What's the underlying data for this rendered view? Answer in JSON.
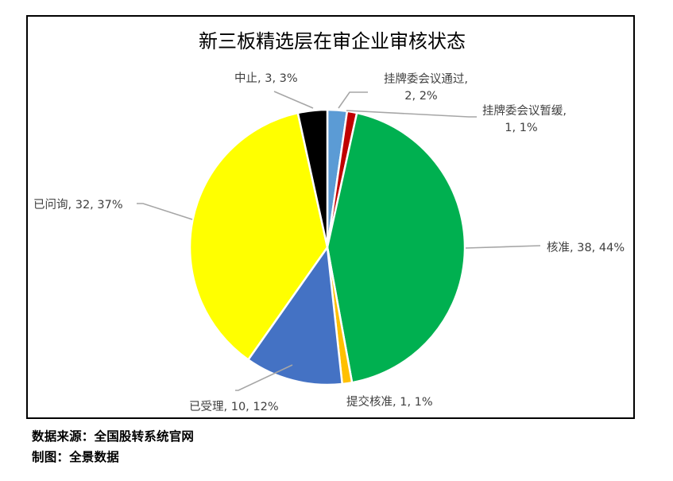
{
  "chart_data": {
    "type": "pie",
    "title": "新三板精选层在审企业审核状态",
    "start_angle_deg": 0,
    "direction": "clockwise",
    "slices": [
      {
        "name": "挂牌委会议通过",
        "value": 2,
        "percent": "2%",
        "color": "#5B9BD5",
        "label_line1": "挂牌委会议通过,",
        "label_line2": "2, 2%"
      },
      {
        "name": "挂牌委会议暂缓",
        "value": 1,
        "percent": "1%",
        "color": "#C00000",
        "label_line1": "挂牌委会议暂缓,",
        "label_line2": "1, 1%"
      },
      {
        "name": "核准",
        "value": 38,
        "percent": "44%",
        "color": "#00B050",
        "label_line1": "核准, 38, 44%",
        "label_line2": ""
      },
      {
        "name": "提交核准",
        "value": 1,
        "percent": "1%",
        "color": "#FFC000",
        "label_line1": "提交核准, 1, 1%",
        "label_line2": ""
      },
      {
        "name": "已受理",
        "value": 10,
        "percent": "12%",
        "color": "#4472C4",
        "label_line1": "已受理, 10, 12%",
        "label_line2": ""
      },
      {
        "name": "已问询",
        "value": 32,
        "percent": "37%",
        "color": "#FFFF00",
        "label_line1": "已问询, 32, 37%",
        "label_line2": ""
      },
      {
        "name": "中止",
        "value": 3,
        "percent": "3%",
        "color": "#000000",
        "label_line1": "中止, 3, 3%",
        "label_line2": ""
      }
    ],
    "total": 87,
    "legend": "none (data labels with leader lines)"
  },
  "footer": {
    "source": "数据来源：全国股转系统官网",
    "maker": "制图：全景数据"
  },
  "colors": {
    "frame": "#000000",
    "leader_line": "#A6A6A6",
    "label_text": "#404040",
    "title_text": "#000000"
  }
}
